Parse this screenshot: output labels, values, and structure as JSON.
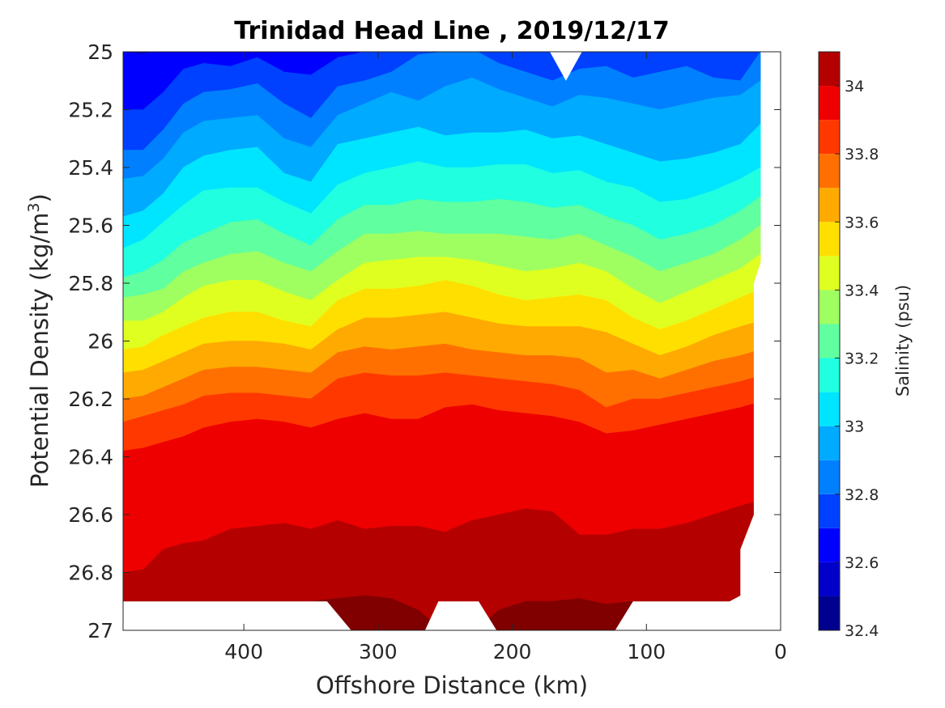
{
  "chart_data": {
    "type": "contour",
    "title": "Trinidad Head Line , 2019/12/17",
    "xlabel": "Offshore Distance (km)",
    "ylabel_main": "Potential Density (kg/m",
    "ylabel_sup": "3",
    "ylabel_close": ")",
    "colorbar_label": "Salinity (psu)",
    "x_reversed": true,
    "xlim": [
      490,
      0
    ],
    "ylim": [
      25,
      27
    ],
    "y_reversed": true,
    "x_ticks": [
      400,
      300,
      200,
      100,
      0
    ],
    "x_tick_labels": [
      "400",
      "300",
      "200",
      "100",
      "0"
    ],
    "y_ticks": [
      25,
      25.2,
      25.4,
      25.6,
      25.8,
      26,
      26.2,
      26.4,
      26.6,
      26.8,
      27
    ],
    "y_tick_labels": [
      "25",
      "25.2",
      "25.4",
      "25.6",
      "25.8",
      "26",
      "26.2",
      "26.4",
      "26.6",
      "26.8",
      "27"
    ],
    "colorbar_range": [
      32.4,
      34.1
    ],
    "colorbar_ticks": [
      32.4,
      32.6,
      32.8,
      33,
      33.2,
      33.4,
      33.6,
      33.8,
      34
    ],
    "colorbar_tick_labels": [
      "32.4",
      "32.6",
      "32.8",
      "33",
      "33.2",
      "33.4",
      "33.6",
      "33.8",
      "34"
    ],
    "levels": [
      32.4,
      32.5,
      32.6,
      32.7,
      32.8,
      32.9,
      33.0,
      33.1,
      33.2,
      33.3,
      33.4,
      33.5,
      33.6,
      33.7,
      33.8,
      33.9,
      34.0,
      34.1
    ],
    "level_colors": [
      "#00008f",
      "#0000c8",
      "#0000ff",
      "#0040ff",
      "#0080ff",
      "#00aaff",
      "#00e5ff",
      "#20ffdf",
      "#60ff9f",
      "#9fff60",
      "#dfff20",
      "#ffdf00",
      "#ffaa00",
      "#ff7000",
      "#ff3800",
      "#ee0000",
      "#b50000",
      "#800000"
    ],
    "grid": false,
    "legend": "colorbar-right"
  }
}
